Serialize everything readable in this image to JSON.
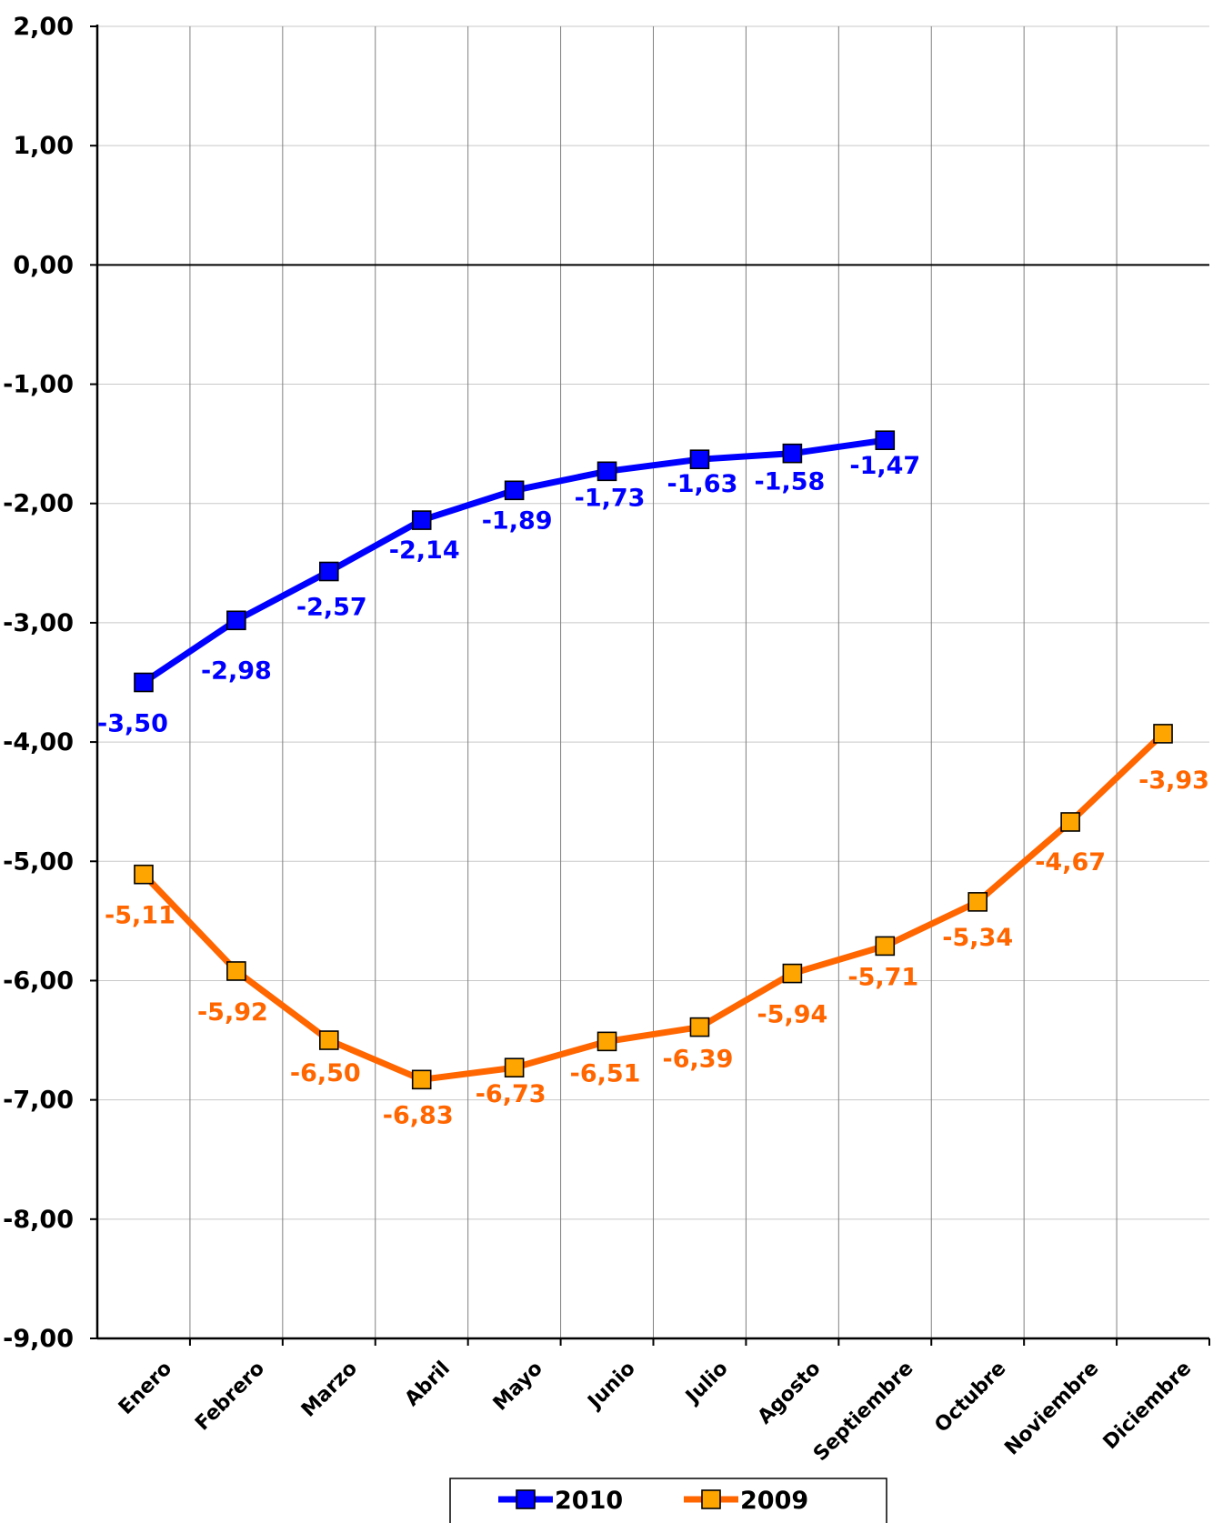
{
  "chart_data": {
    "type": "line",
    "categories": [
      "Enero",
      "Febrero",
      "Marzo",
      "Abril",
      "Mayo",
      "Junio",
      "Julio",
      "Agosto",
      "Septiembre",
      "Octubre",
      "Noviembre",
      "Diciembre"
    ],
    "series": [
      {
        "name": "2010",
        "color": "#0000FF",
        "marker": "square",
        "values": [
          -3.5,
          -2.98,
          -2.57,
          -2.14,
          -1.89,
          -1.73,
          -1.63,
          -1.58,
          -1.47,
          null,
          null,
          null
        ],
        "labels": [
          "-3,50",
          "-2,98",
          "-2,57",
          "-2,14",
          "-1,89",
          "-1,73",
          "-1,63",
          "-1,58",
          "-1,47",
          "",
          "",
          ""
        ]
      },
      {
        "name": "2009",
        "color": "#FF6600",
        "marker_fill": "#FFA500",
        "marker": "square",
        "values": [
          -5.11,
          -5.92,
          -6.5,
          -6.83,
          -6.73,
          -6.51,
          -6.39,
          -5.94,
          -5.71,
          -5.34,
          -4.67,
          -3.93
        ],
        "labels": [
          "-5,11",
          "-5,92",
          "-6,50",
          "-6,83",
          "-6,73",
          "-6,51",
          "-6,39",
          "-5,94",
          "-5,71",
          "-5,34",
          "-4,67",
          "-3,93"
        ]
      }
    ],
    "ylim": [
      -9,
      2
    ],
    "yticks": [
      2,
      1,
      0,
      -1,
      -2,
      -3,
      -4,
      -5,
      -6,
      -7,
      -8,
      -9
    ],
    "ytick_labels": [
      "2,00",
      "1,00",
      "0,00",
      "-1,00",
      "-2,00",
      "-3,00",
      "-4,00",
      "-5,00",
      "-6,00",
      "-7,00",
      "-8,00",
      "-9,00"
    ],
    "title": "",
    "xlabel": "",
    "ylabel": "",
    "grid": true,
    "legend": {
      "position": "bottom-center",
      "entries": [
        "2010",
        "2009"
      ]
    }
  }
}
